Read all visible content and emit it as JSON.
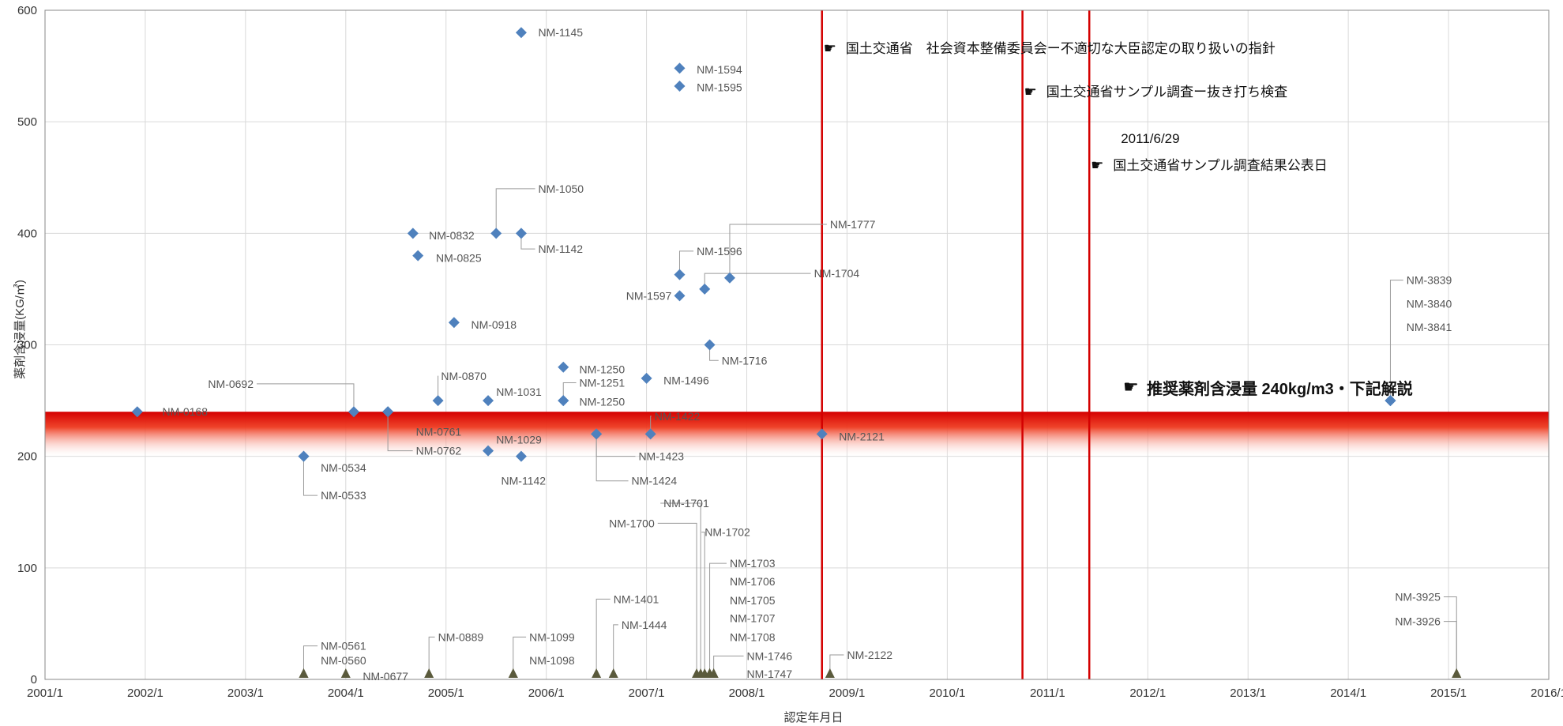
{
  "chart_data": {
    "type": "scatter",
    "title": "",
    "xlabel": "認定年月日",
    "ylabel": "薬剤含浸量(KG/㎥)",
    "xlim": [
      "2001/1",
      "2016/1"
    ],
    "ylim": [
      0,
      600
    ],
    "yticks": [
      "0",
      "100",
      "200",
      "300",
      "400",
      "500",
      "600"
    ],
    "xticks": [
      "2001/1",
      "2002/1",
      "2003/1",
      "2004/1",
      "2005/1",
      "2006/1",
      "2007/1",
      "2008/1",
      "2009/1",
      "2010/1",
      "2011/1",
      "2012/1",
      "2013/1",
      "2014/1",
      "2015/1",
      "2016/1"
    ],
    "grid": true,
    "band": {
      "from": 200,
      "to": 240,
      "color": "#e60000"
    },
    "vlines": [
      {
        "x": "2008/10",
        "color": "#d40000",
        "text": "国土交通省　社会資本整備委員会ー不適切な大臣認定の取り扱いの指針",
        "ty": 566
      },
      {
        "x": "2010/10",
        "color": "#d40000",
        "text": "国土交通省サンプル調査ー抜き打ち検査",
        "ty": 527
      },
      {
        "x": "2011/6",
        "color": "#d40000",
        "text": "国土交通省サンプル調査結果公表日",
        "ty": 461,
        "date": "2011/6/29"
      }
    ],
    "note": "推奨薬剤含浸量 240kg/m3・下記解説",
    "marker_color": "#4f81bd",
    "zero_marker_color": "#5a5a3c",
    "points": [
      {
        "x": 2001.92,
        "y": 240,
        "label": "NM-0168",
        "lx": 2002.17,
        "ly": 240
      },
      {
        "x": 2003.58,
        "y": 200,
        "label": "NM-0534",
        "lx": 2003.75,
        "ly": 190
      },
      {
        "x": 2003.58,
        "y": 200,
        "label": "NM-0533",
        "lx": 2003.75,
        "ly": 165,
        "tie": true
      },
      {
        "x": 2004.08,
        "y": 240,
        "label": "NM-0692",
        "lx": 2003.08,
        "ly": 265,
        "right": true,
        "tie": true
      },
      {
        "x": 2004.42,
        "y": 240,
        "label": "NM-0761",
        "lx": 2004.7,
        "ly": 222
      },
      {
        "x": 2004.42,
        "y": 240,
        "label": "NM-0762",
        "lx": 2004.7,
        "ly": 205,
        "tie": true
      },
      {
        "x": 2004.67,
        "y": 400,
        "label": "NM-0832",
        "lx": 2004.83,
        "ly": 398
      },
      {
        "x": 2004.72,
        "y": 380,
        "label": "NM-0825",
        "lx": 2004.9,
        "ly": 378
      },
      {
        "x": 2004.92,
        "y": 250,
        "label": "NM-0870",
        "lx": 2004.95,
        "ly": 272,
        "tie": true
      },
      {
        "x": 2005.08,
        "y": 320,
        "label": "NM-0918",
        "lx": 2005.25,
        "ly": 318
      },
      {
        "x": 2005.42,
        "y": 250,
        "label": "NM-1031",
        "lx": 2005.5,
        "ly": 258
      },
      {
        "x": 2005.42,
        "y": 205,
        "label": "NM-1029",
        "lx": 2005.5,
        "ly": 215
      },
      {
        "x": 2005.5,
        "y": 400,
        "label": "NM-1050",
        "lx": 2005.92,
        "ly": 440,
        "tie": true
      },
      {
        "x": 2005.75,
        "y": 400,
        "label": "NM-1142",
        "lx": 2005.92,
        "ly": 386,
        "tie": true
      },
      {
        "x": 2005.75,
        "y": 200,
        "label": "NM-1142",
        "lx": 2005.55,
        "ly": 178
      },
      {
        "x": 2005.75,
        "y": 580,
        "label": "NM-1145",
        "lx": 2005.92,
        "ly": 580
      },
      {
        "x": 2006.17,
        "y": 280,
        "label": "NM-1250",
        "lx": 2006.33,
        "ly": 278
      },
      {
        "x": 2006.17,
        "y": 250,
        "label": "NM-1250",
        "lx": 2006.33,
        "ly": 249
      },
      {
        "x": 2006.17,
        "y": 250,
        "label": "NM-1251",
        "lx": 2006.33,
        "ly": 266,
        "tie": true
      },
      {
        "x": 2006.5,
        "y": 220,
        "label": "NM-1423",
        "lx": 2006.92,
        "ly": 200,
        "tie": true
      },
      {
        "x": 2006.5,
        "y": 220,
        "label": "NM-1424",
        "lx": 2006.85,
        "ly": 178,
        "tie": true
      },
      {
        "x": 2007.0,
        "y": 270,
        "label": "NM-1496",
        "lx": 2007.17,
        "ly": 268
      },
      {
        "x": 2007.04,
        "y": 220,
        "label": "NM-1422",
        "lx": 2007.08,
        "ly": 236,
        "tie": true
      },
      {
        "x": 2007.33,
        "y": 548,
        "label": "NM-1594",
        "lx": 2007.5,
        "ly": 547
      },
      {
        "x": 2007.33,
        "y": 532,
        "label": "NM-1595",
        "lx": 2007.5,
        "ly": 531
      },
      {
        "x": 2007.33,
        "y": 363,
        "label": "NM-1596",
        "lx": 2007.5,
        "ly": 384,
        "tie": true
      },
      {
        "x": 2007.33,
        "y": 344,
        "label": "NM-1597",
        "lx": 2007.25,
        "ly": 344,
        "right": true
      },
      {
        "x": 2007.58,
        "y": 350,
        "label": "NM-1704",
        "lx": 2008.67,
        "ly": 364,
        "tie": true
      },
      {
        "x": 2007.83,
        "y": 360,
        "label": "NM-1777",
        "lx": 2008.83,
        "ly": 408,
        "tie": true
      },
      {
        "x": 2007.63,
        "y": 300,
        "label": "NM-1716",
        "lx": 2007.75,
        "ly": 286,
        "tie": true
      },
      {
        "x": 2008.75,
        "y": 220,
        "label": "NM-2121",
        "lx": 2008.92,
        "ly": 218
      },
      {
        "x": 2014.42,
        "y": 250,
        "label": "NM-3839",
        "lx": 2014.58,
        "ly": 358,
        "tie": true
      },
      {
        "x": 2014.42,
        "y": 250,
        "label": "NM-3840",
        "lx": 2014.58,
        "ly": 337
      },
      {
        "x": 2014.42,
        "y": 250,
        "label": "NM-3841",
        "lx": 2014.58,
        "ly": 316
      },
      {
        "x": 2003.58,
        "y": 5,
        "label": "NM-0561",
        "lx": 2003.75,
        "ly": 30,
        "tie": true
      },
      {
        "x": 2003.58,
        "y": 5,
        "label": "NM-0560",
        "lx": 2003.75,
        "ly": 17
      },
      {
        "x": 2004.0,
        "y": 5,
        "label": "NM-0677",
        "lx": 2004.17,
        "ly": 3
      },
      {
        "x": 2004.83,
        "y": 5,
        "label": "NM-0889",
        "lx": 2004.92,
        "ly": 38,
        "tie": true
      },
      {
        "x": 2005.67,
        "y": 5,
        "label": "NM-1099",
        "lx": 2005.83,
        "ly": 38,
        "tie": true
      },
      {
        "x": 2005.67,
        "y": 5,
        "label": "NM-1098",
        "lx": 2005.83,
        "ly": 17
      },
      {
        "x": 2006.5,
        "y": 5,
        "label": "NM-1401",
        "lx": 2006.67,
        "ly": 72,
        "tie": true
      },
      {
        "x": 2006.67,
        "y": 5,
        "label": "NM-1444",
        "lx": 2006.75,
        "ly": 49,
        "tie": true
      },
      {
        "x": 2007.5,
        "y": 5,
        "label": "NM-1700",
        "lx": 2007.08,
        "ly": 140,
        "right": true,
        "tie": true
      },
      {
        "x": 2007.54,
        "y": 5,
        "label": "NM-1701",
        "lx": 2007.17,
        "ly": 158,
        "tie": true
      },
      {
        "x": 2007.58,
        "y": 5,
        "label": "NM-1702",
        "lx": 2007.58,
        "ly": 132,
        "tie": true
      },
      {
        "x": 2007.63,
        "y": 5,
        "label": "NM-1703",
        "lx": 2007.83,
        "ly": 104,
        "tie": true
      },
      {
        "x": 2007.63,
        "y": 5,
        "label": "NM-1706",
        "lx": 2007.83,
        "ly": 88
      },
      {
        "x": 2007.63,
        "y": 5,
        "label": "NM-1705",
        "lx": 2007.83,
        "ly": 71
      },
      {
        "x": 2007.63,
        "y": 5,
        "label": "NM-1707",
        "lx": 2007.83,
        "ly": 55
      },
      {
        "x": 2007.63,
        "y": 5,
        "label": "NM-1708",
        "lx": 2007.83,
        "ly": 38
      },
      {
        "x": 2007.67,
        "y": 5,
        "label": "NM-1746",
        "lx": 2008.0,
        "ly": 21,
        "tie": true
      },
      {
        "x": 2007.67,
        "y": 5,
        "label": "NM-1747",
        "lx": 2008.0,
        "ly": 5
      },
      {
        "x": 2008.83,
        "y": 5,
        "label": "NM-2122",
        "lx": 2009.0,
        "ly": 22,
        "tie": true
      },
      {
        "x": 2015.08,
        "y": 5,
        "label": "NM-3925",
        "lx": 2014.92,
        "ly": 74,
        "right": true,
        "tie": true
      },
      {
        "x": 2015.08,
        "y": 5,
        "label": "NM-3926",
        "lx": 2014.92,
        "ly": 52,
        "right": true,
        "tie": true
      }
    ]
  }
}
